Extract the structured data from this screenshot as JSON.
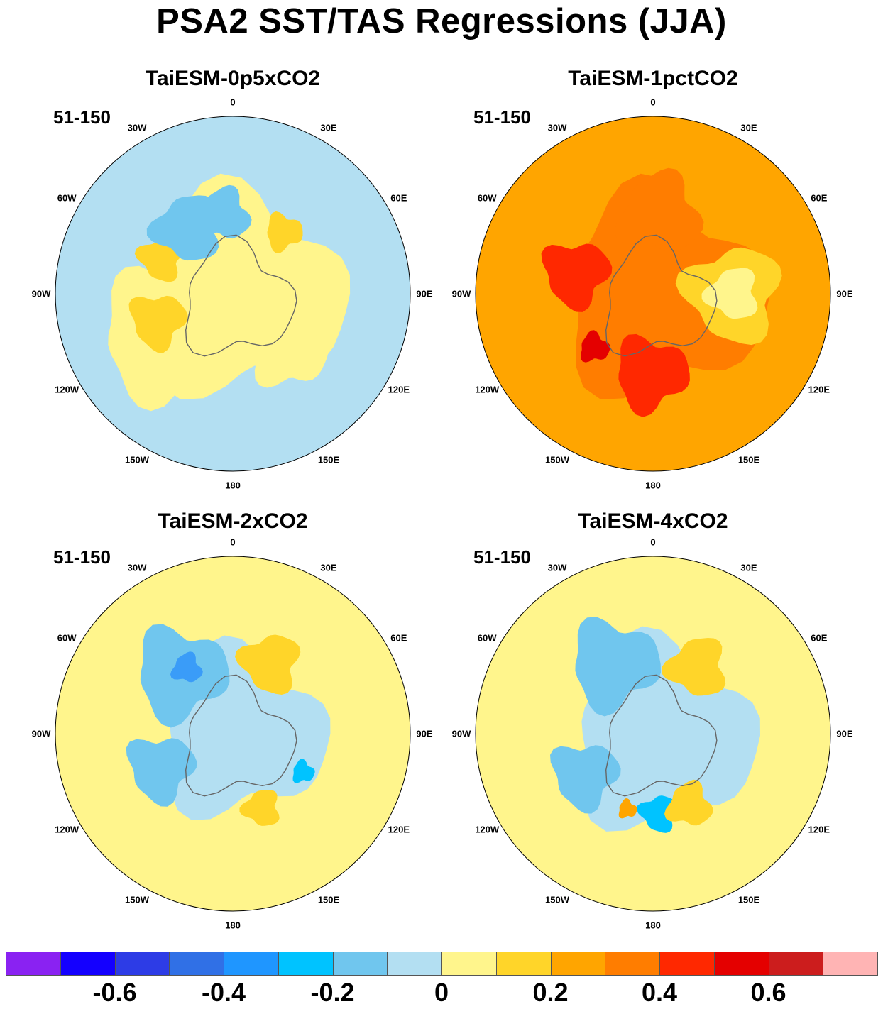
{
  "title": "PSA2 SST/TAS Regressions (JJA)",
  "panels": [
    {
      "title": "TaiESM-0p5xCO2",
      "period": "51-150",
      "base_color": "#b3dff2",
      "features": [
        {
          "c": "#fff58c",
          "r": 0.55,
          "a": 0.0
        },
        {
          "c": "#fff58c",
          "r": 0.35,
          "a": 2.6
        },
        {
          "c": "#ffd529",
          "r": 0.15,
          "a": 2.8
        },
        {
          "c": "#ffd529",
          "r": 0.12,
          "a": 3.6
        },
        {
          "c": "#70c6ee",
          "r": 0.18,
          "a": 4.1
        },
        {
          "c": "#70c6ee",
          "r": 0.14,
          "a": 4.6
        },
        {
          "c": "#fff58c",
          "r": 0.2,
          "a": 0.8
        },
        {
          "c": "#ffd529",
          "r": 0.1,
          "a": 5.4
        }
      ]
    },
    {
      "title": "TaiESM-1pctCO2",
      "period": "51-150",
      "base_color": "#ffa500",
      "features": [
        {
          "c": "#ff7d00",
          "r": 0.55,
          "a": 0.0
        },
        {
          "c": "#ff2800",
          "r": 0.2,
          "a": 1.6
        },
        {
          "c": "#ff2800",
          "r": 0.18,
          "a": 3.4
        },
        {
          "c": "#ffd529",
          "r": 0.26,
          "a": 0.0
        },
        {
          "c": "#fff58c",
          "r": 0.14,
          "a": 0.0
        },
        {
          "c": "#ff7d00",
          "r": 0.22,
          "a": 4.8
        },
        {
          "c": "#e40000",
          "r": 0.08,
          "a": 2.4
        }
      ]
    },
    {
      "title": "TaiESM-2xCO2",
      "period": "51-150",
      "base_color": "#fff58c",
      "features": [
        {
          "c": "#b3dff2",
          "r": 0.45,
          "a": 0.0
        },
        {
          "c": "#70c6ee",
          "r": 0.25,
          "a": 4.0
        },
        {
          "c": "#70c6ee",
          "r": 0.18,
          "a": 2.7
        },
        {
          "c": "#ffd529",
          "r": 0.16,
          "a": 5.2
        },
        {
          "c": "#ffd529",
          "r": 0.1,
          "a": 1.2
        },
        {
          "c": "#3a9cf8",
          "r": 0.08,
          "a": 4.1
        },
        {
          "c": "#00c3ff",
          "r": 0.06,
          "a": 0.5
        }
      ]
    },
    {
      "title": "TaiESM-4xCO2",
      "period": "51-150",
      "base_color": "#fff58c",
      "features": [
        {
          "c": "#b3dff2",
          "r": 0.5,
          "a": 0.2
        },
        {
          "c": "#70c6ee",
          "r": 0.24,
          "a": 4.2
        },
        {
          "c": "#70c6ee",
          "r": 0.18,
          "a": 2.6
        },
        {
          "c": "#00c3ff",
          "r": 0.1,
          "a": 1.5
        },
        {
          "c": "#ffd529",
          "r": 0.16,
          "a": 5.3
        },
        {
          "c": "#ffd529",
          "r": 0.12,
          "a": 1.1
        },
        {
          "c": "#ffa500",
          "r": 0.05,
          "a": 1.9
        }
      ]
    }
  ],
  "lon_labels": [
    "0",
    "30E",
    "60E",
    "90E",
    "120E",
    "150E",
    "180",
    "150W",
    "120W",
    "90W",
    "60W",
    "30W"
  ],
  "colorbar": {
    "colors": [
      "#8a22f2",
      "#1400ff",
      "#2d3ce6",
      "#3070e6",
      "#1f96ff",
      "#00c3ff",
      "#70c6ee",
      "#b3dff2",
      "#fff58c",
      "#ffd529",
      "#ffa500",
      "#ff7d00",
      "#ff2800",
      "#e40000",
      "#cc1d1d",
      "#ffb4b4"
    ],
    "labels": [
      "-0.6",
      "-0.4",
      "-0.2",
      "0",
      "0.2",
      "0.4",
      "0.6"
    ],
    "label_values": [
      -0.6,
      -0.4,
      -0.2,
      0,
      0.2,
      0.4,
      0.6
    ],
    "min": -0.8,
    "max": 0.8
  }
}
